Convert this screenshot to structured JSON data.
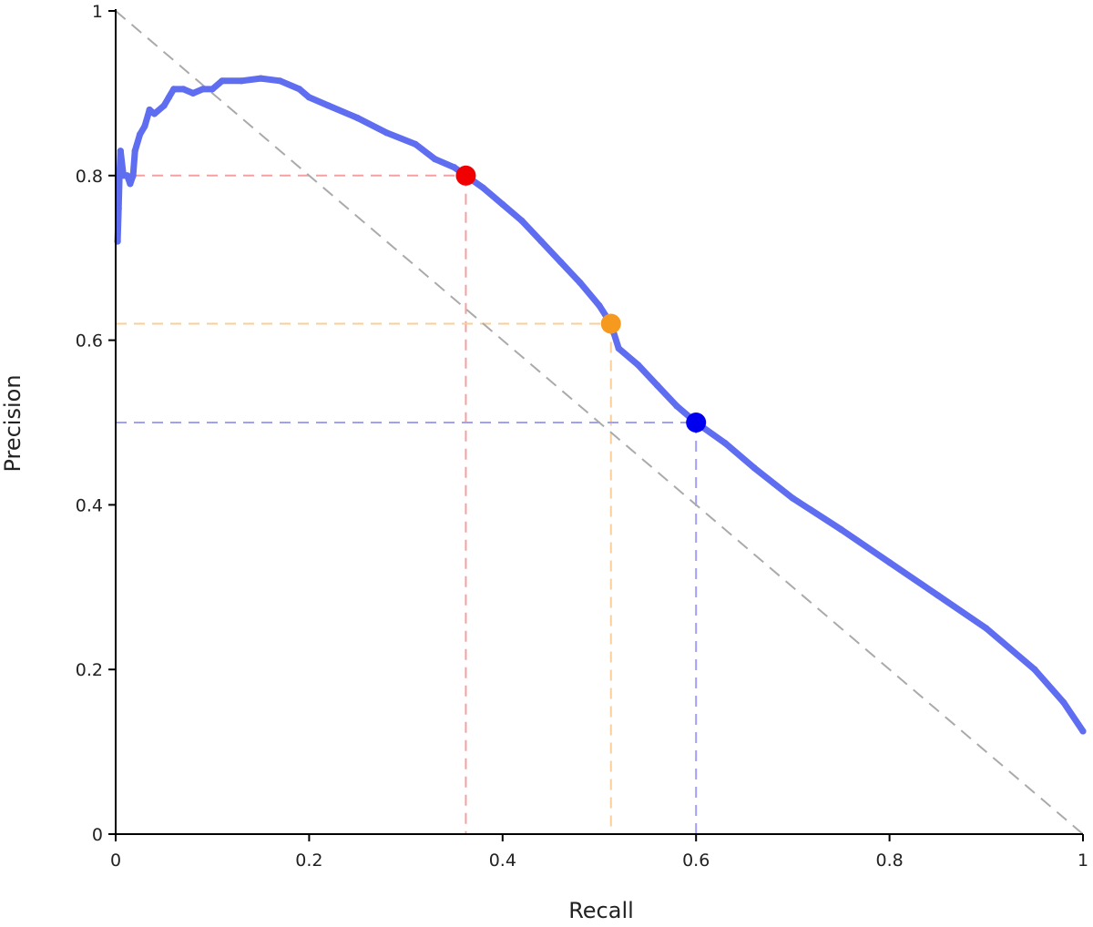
{
  "chart_data": {
    "type": "line",
    "xlabel": "Recall",
    "ylabel": "Precision",
    "xlim": [
      0,
      1
    ],
    "ylim": [
      0,
      1
    ],
    "x_ticks": [
      0,
      0.2,
      0.4,
      0.6,
      0.8,
      1
    ],
    "x_tick_labels": [
      "0",
      "0.2",
      "0.4",
      "0.6",
      "0.8",
      "1"
    ],
    "y_ticks": [
      0,
      0.2,
      0.4,
      0.6,
      0.8,
      1
    ],
    "y_tick_labels": [
      "0",
      "0.2",
      "0.4",
      "0.6",
      "0.8",
      "1"
    ],
    "grid": false,
    "series": [
      {
        "color": "#5f6df0",
        "points": [
          [
            0.002,
            0.72
          ],
          [
            0.003,
            0.76
          ],
          [
            0.004,
            0.8
          ],
          [
            0.005,
            0.83
          ],
          [
            0.008,
            0.8
          ],
          [
            0.012,
            0.8
          ],
          [
            0.015,
            0.79
          ],
          [
            0.018,
            0.8
          ],
          [
            0.02,
            0.83
          ],
          [
            0.025,
            0.85
          ],
          [
            0.03,
            0.86
          ],
          [
            0.035,
            0.88
          ],
          [
            0.04,
            0.875
          ],
          [
            0.05,
            0.885
          ],
          [
            0.055,
            0.895
          ],
          [
            0.06,
            0.905
          ],
          [
            0.07,
            0.905
          ],
          [
            0.08,
            0.9
          ],
          [
            0.09,
            0.905
          ],
          [
            0.1,
            0.905
          ],
          [
            0.11,
            0.915
          ],
          [
            0.13,
            0.915
          ],
          [
            0.15,
            0.918
          ],
          [
            0.17,
            0.915
          ],
          [
            0.19,
            0.905
          ],
          [
            0.2,
            0.895
          ],
          [
            0.22,
            0.885
          ],
          [
            0.25,
            0.87
          ],
          [
            0.28,
            0.852
          ],
          [
            0.31,
            0.838
          ],
          [
            0.33,
            0.82
          ],
          [
            0.35,
            0.81
          ],
          [
            0.362,
            0.8
          ],
          [
            0.38,
            0.785
          ],
          [
            0.4,
            0.765
          ],
          [
            0.42,
            0.745
          ],
          [
            0.44,
            0.72
          ],
          [
            0.46,
            0.695
          ],
          [
            0.48,
            0.67
          ],
          [
            0.5,
            0.642
          ],
          [
            0.512,
            0.62
          ],
          [
            0.52,
            0.59
          ],
          [
            0.54,
            0.57
          ],
          [
            0.56,
            0.545
          ],
          [
            0.58,
            0.52
          ],
          [
            0.6,
            0.5
          ],
          [
            0.63,
            0.475
          ],
          [
            0.66,
            0.445
          ],
          [
            0.7,
            0.408
          ],
          [
            0.75,
            0.37
          ],
          [
            0.8,
            0.33
          ],
          [
            0.85,
            0.29
          ],
          [
            0.9,
            0.25
          ],
          [
            0.95,
            0.2
          ],
          [
            0.98,
            0.16
          ],
          [
            1.0,
            0.125
          ]
        ]
      }
    ],
    "diagonal": {
      "from": [
        0,
        1
      ],
      "to": [
        1,
        0
      ],
      "color": "#aaaaaa"
    },
    "highlight_points": [
      {
        "x": 0.362,
        "y": 0.8,
        "color": "#f00000",
        "line_color": "#f4a0a0"
      },
      {
        "x": 0.512,
        "y": 0.62,
        "color": "#f59a1e",
        "line_color": "#f8cf9a"
      },
      {
        "x": 0.6,
        "y": 0.5,
        "color": "#0000ee",
        "line_color": "#a0a0f4"
      }
    ]
  }
}
